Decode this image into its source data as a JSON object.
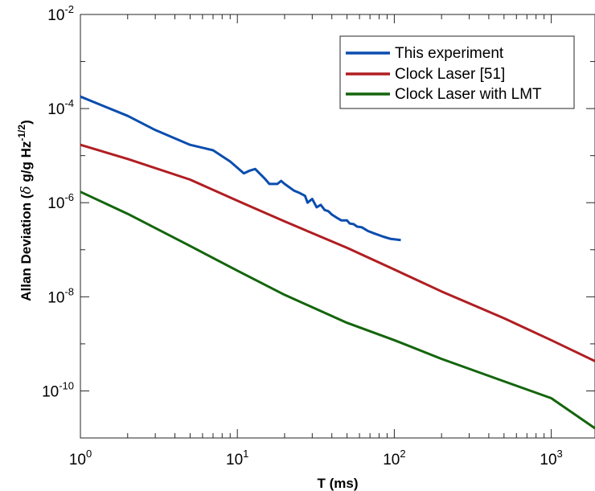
{
  "chart_data": {
    "type": "line",
    "xlabel": "T (ms)",
    "ylabel_main": "Allan Deviation (",
    "ylabel_delta": "δ",
    "ylabel_unit": " g/g Hz",
    "ylabel_exp": "-1/2",
    "ylabel_close": ")",
    "x_scale": "log",
    "y_scale": "log",
    "xlim": [
      1,
      1900
    ],
    "ylim": [
      1e-11,
      0.01
    ],
    "x_ticks": [
      {
        "base": "10",
        "exp": "0",
        "value": 1
      },
      {
        "base": "10",
        "exp": "1",
        "value": 10
      },
      {
        "base": "10",
        "exp": "2",
        "value": 100
      },
      {
        "base": "10",
        "exp": "3",
        "value": 1000
      }
    ],
    "y_ticks": [
      {
        "base": "10",
        "exp": "-2",
        "value": 0.01
      },
      {
        "base": "10",
        "exp": "-4",
        "value": 0.0001
      },
      {
        "base": "10",
        "exp": "-6",
        "value": 1e-06
      },
      {
        "base": "10",
        "exp": "-8",
        "value": 1e-08
      },
      {
        "base": "10",
        "exp": "-10",
        "value": 1e-10
      }
    ],
    "grid": false,
    "legend_position": "top-right",
    "series": [
      {
        "name": "This experiment",
        "color": "#0B4DAE",
        "points": [
          [
            1,
            0.00018
          ],
          [
            2,
            7e-05
          ],
          [
            3,
            3.5e-05
          ],
          [
            5,
            1.7e-05
          ],
          [
            7,
            1.3e-05
          ],
          [
            9,
            7.5e-06
          ],
          [
            11,
            4.2e-06
          ],
          [
            12,
            4.8e-06
          ],
          [
            13,
            5.2e-06
          ],
          [
            15,
            3.2e-06
          ],
          [
            16,
            2.5e-06
          ],
          [
            18,
            2.5e-06
          ],
          [
            19,
            2.9e-06
          ],
          [
            20,
            2.5e-06
          ],
          [
            23,
            1.8e-06
          ],
          [
            25,
            1.6e-06
          ],
          [
            27,
            1.4e-06
          ],
          [
            28,
            1e-06
          ],
          [
            30,
            1.2e-06
          ],
          [
            32,
            8e-07
          ],
          [
            34,
            9e-07
          ],
          [
            36,
            7e-07
          ],
          [
            38,
            6.6e-07
          ],
          [
            40,
            5.6e-07
          ],
          [
            43,
            4.8e-07
          ],
          [
            46,
            4.2e-07
          ],
          [
            50,
            4.2e-07
          ],
          [
            52,
            3.6e-07
          ],
          [
            55,
            3.5e-07
          ],
          [
            58,
            3.1e-07
          ],
          [
            62,
            3e-07
          ],
          [
            68,
            2.5e-07
          ],
          [
            75,
            2.2e-07
          ],
          [
            85,
            1.9e-07
          ],
          [
            95,
            1.7e-07
          ],
          [
            110,
            1.6e-07
          ]
        ]
      },
      {
        "name": "Clock Laser [51]",
        "color": "#B01E22",
        "points": [
          [
            1,
            1.7e-05
          ],
          [
            2,
            8.5e-06
          ],
          [
            5,
            3.1e-06
          ],
          [
            10,
            1.1e-06
          ],
          [
            20,
            4e-07
          ],
          [
            50,
            1.1e-07
          ],
          [
            100,
            3.8e-08
          ],
          [
            200,
            1.3e-08
          ],
          [
            500,
            3.5e-09
          ],
          [
            1000,
            1.2e-09
          ],
          [
            1900,
            4.3e-10
          ]
        ]
      },
      {
        "name": "Clock Laser with LMT",
        "color": "#13650C",
        "points": [
          [
            1,
            1.7e-06
          ],
          [
            2,
            5.8e-07
          ],
          [
            5,
            1.2e-07
          ],
          [
            10,
            3.6e-08
          ],
          [
            20,
            1.1e-08
          ],
          [
            50,
            2.8e-09
          ],
          [
            100,
            1.2e-09
          ],
          [
            200,
            4.8e-10
          ],
          [
            500,
            1.6e-10
          ],
          [
            1000,
            7e-11
          ],
          [
            1900,
            1.6e-11
          ]
        ]
      }
    ]
  }
}
